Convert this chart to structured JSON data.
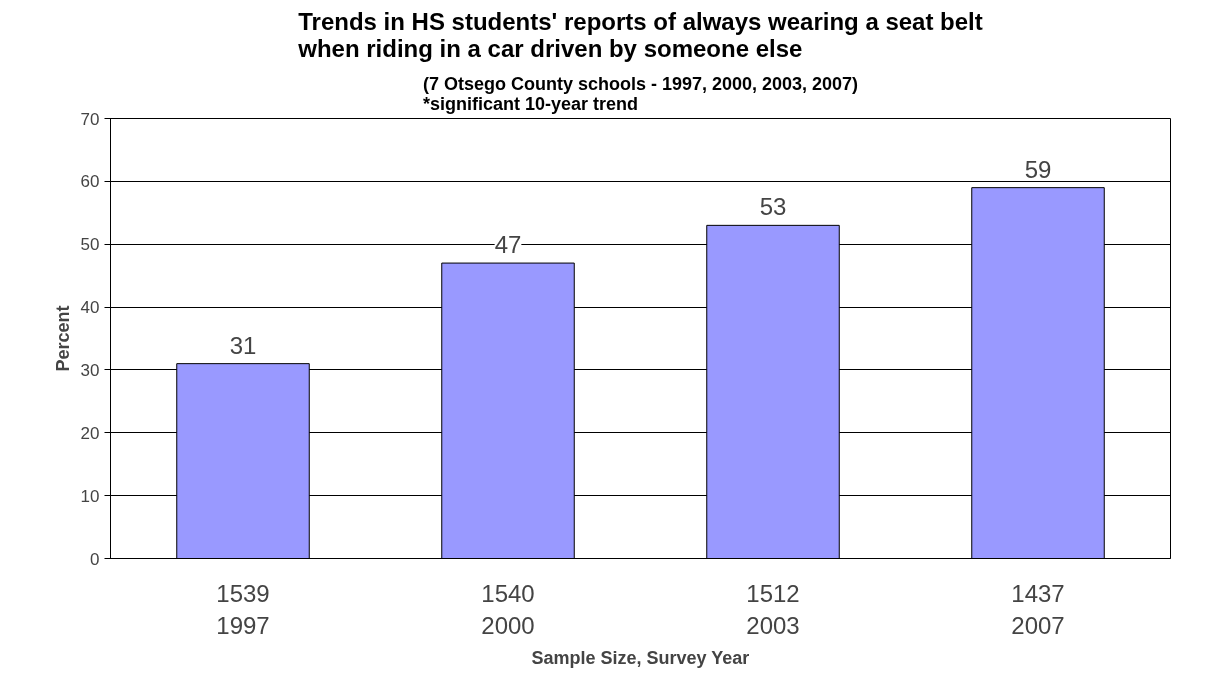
{
  "chart_data": {
    "type": "bar",
    "title": "Trends in HS students' reports of always wearing a seat belt\nwhen riding in a car driven by someone else",
    "subtitle": "(7 Otsego County schools - 1997, 2000, 2003, 2007)\n*significant 10-year trend",
    "xlabel": "Sample Size, Survey Year",
    "ylabel": "Percent",
    "categories": [
      "1539\n1997",
      "1540\n2000",
      "1512\n2003",
      "1437\n2007"
    ],
    "values": [
      31,
      47,
      53,
      59
    ],
    "color": "#9999ff",
    "ylim": [
      0,
      70
    ],
    "yticks": [
      0,
      10,
      20,
      30,
      40,
      50,
      60,
      70
    ],
    "grid": "y",
    "data_labels": true
  }
}
